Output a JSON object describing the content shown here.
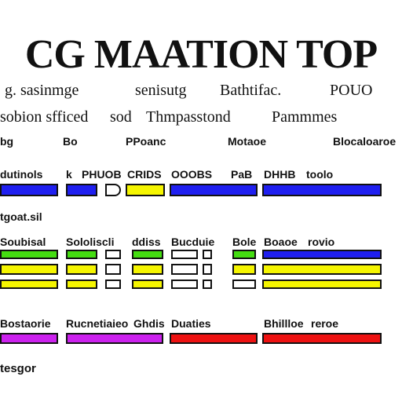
{
  "title": "CG MAATION TOP",
  "subtitles": {
    "line1_left": "g. sasinmge",
    "line1_mid": "senisutg",
    "line1_right1": "Bathtifac.",
    "line1_right2": "POUO",
    "line2_left": "sobion sfficed",
    "line2_mid": "sod",
    "line2_mid2": "Thmpasstond",
    "line2_right": "Pammmes"
  },
  "headers": [
    "bg",
    "Bo",
    "PPoanc",
    "Motaoe",
    "Blocaloaroe"
  ],
  "row_labels": {
    "row1": [
      "dutinols",
      "k",
      "PHUOB",
      "CRIDS",
      "OOOBS",
      "PaB",
      "DHHB",
      "toolo"
    ],
    "section2": "tgoat.sil",
    "row2": [
      "Soubisal",
      "Sololiscli",
      "ddiss",
      "Bucduie",
      "Bole",
      "Boaoe",
      "rovio"
    ],
    "section3": "",
    "row3": [
      "Bostaorie",
      "Rucnetiaieo",
      "Ghdis",
      "Duaties",
      "Bhillloe",
      "reroe"
    ],
    "footer": "tesgor"
  },
  "colors": {
    "blue": "#1f1ff0",
    "yellow": "#f5f500",
    "green": "#44dd11",
    "purple": "#cc22ee",
    "red": "#ee1111"
  }
}
